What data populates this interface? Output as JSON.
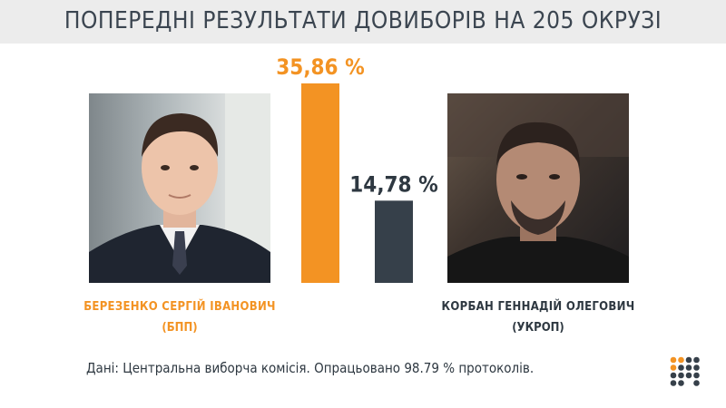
{
  "header": {
    "title": "ПОПЕРЕДНІ РЕЗУЛЬТАТИ ДОВИБОРІВ НА 205 ОКРУЗІ"
  },
  "candidates": [
    {
      "name": "БЕРЕЗЕНКО  СЕРГІЙ  ІВАНОВИЧ",
      "party": "(БПП)"
    },
    {
      "name": "КОРБАН ГЕННАДІЙ ОЛЕГОВИЧ",
      "party": "(УКРОП)"
    }
  ],
  "chart_data": {
    "type": "bar",
    "categories": [
      "БЕРЕЗЕНКО  СЕРГІЙ  ІВАНОВИЧ",
      "КОРБАН ГЕННАДІЙ ОЛЕГОВИЧ"
    ],
    "values": [
      35.86,
      14.78
    ],
    "value_labels": [
      "35,86 %",
      "14,78 %"
    ],
    "colors": [
      "#f39323",
      "#36404a"
    ],
    "ylim": [
      0,
      40
    ],
    "title": "ПОПЕРЕДНІ РЕЗУЛЬТАТИ ДОВИБОРІВ НА 205 ОКРУЗІ",
    "xlabel": "",
    "ylabel": "",
    "grid": false,
    "legend": "none"
  },
  "footer": {
    "source": "Дані: Центральна виборча комісія. Опрацьовано 98.79 % протоколів."
  },
  "logo": {
    "icon": "dot-grid-logo-icon",
    "colors": [
      "#f39323",
      "#36404a"
    ]
  }
}
